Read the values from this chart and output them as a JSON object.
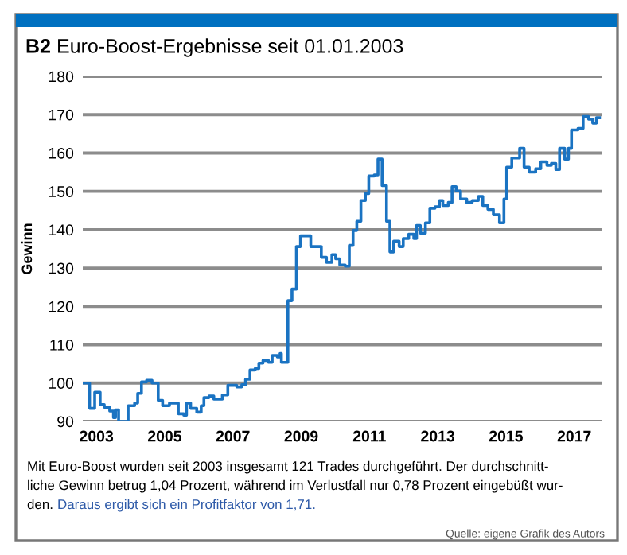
{
  "chart_data": {
    "type": "step",
    "title": "B2 Euro-Boost-Ergebnisse seit 01.01.2003",
    "ylabel": "Gewinn",
    "x": [
      2002.61,
      2002.8,
      2002.95,
      2003.11,
      2003.23,
      2003.39,
      2003.5,
      2003.56,
      2003.65,
      2003.81,
      2003.93,
      2004.12,
      2004.21,
      2004.32,
      2004.47,
      2004.63,
      2004.81,
      2004.94,
      2005.14,
      2005.33,
      2005.4,
      2005.56,
      2005.64,
      2005.76,
      2005.94,
      2006.07,
      2006.15,
      2006.3,
      2006.44,
      2006.69,
      2006.85,
      2007.11,
      2007.26,
      2007.37,
      2007.5,
      2007.65,
      2007.76,
      2007.88,
      2008.04,
      2008.15,
      2008.3,
      2008.38,
      2008.42,
      2008.61,
      2008.73,
      2008.86,
      2008.98,
      2009.28,
      2009.59,
      2009.74,
      2009.9,
      2010.01,
      2010.13,
      2010.29,
      2010.41,
      2010.52,
      2010.63,
      2010.75,
      2010.88,
      2010.98,
      2011.14,
      2011.25,
      2011.37,
      2011.5,
      2011.6,
      2011.71,
      2011.87,
      2011.99,
      2012.15,
      2012.3,
      2012.38,
      2012.49,
      2012.64,
      2012.77,
      2012.92,
      2013.05,
      2013.15,
      2013.31,
      2013.42,
      2013.54,
      2013.67,
      2013.85,
      2014.01,
      2014.19,
      2014.32,
      2014.47,
      2014.63,
      2014.81,
      2014.94,
      2015.02,
      2015.17,
      2015.4,
      2015.53,
      2015.68,
      2015.87,
      2016.02,
      2016.2,
      2016.33,
      2016.46,
      2016.57,
      2016.72,
      2016.83,
      2016.92,
      2017.11,
      2017.26,
      2017.42,
      2017.54,
      2017.65,
      2017.74
    ],
    "series": [
      {
        "color": "#1a73c2",
        "values": [
          100,
          93.4,
          97.6,
          94.4,
          93.7,
          92.7,
          91,
          93,
          90,
          90,
          94.1,
          94.8,
          97.3,
          100.3,
          100.7,
          100,
          95.5,
          94.1,
          94.8,
          94.8,
          92,
          91.6,
          94.8,
          93.4,
          92.4,
          94.1,
          96.2,
          96.6,
          95.8,
          96.9,
          99.4,
          99,
          99.6,
          101,
          103.4,
          103.8,
          105.2,
          105.9,
          105.4,
          107.2,
          106.8,
          107.7,
          105.4,
          121.5,
          124.5,
          135.6,
          138.4,
          135.6,
          132.8,
          131.5,
          133.5,
          132.4,
          130.8,
          130.5,
          135.9,
          139.8,
          142.2,
          147.6,
          149.4,
          154,
          154.3,
          158.4,
          151.5,
          142.2,
          134.2,
          137,
          135.6,
          137.7,
          138.8,
          137.7,
          141.1,
          139.1,
          141.8,
          145.6,
          146,
          147.6,
          146.3,
          147.1,
          151.2,
          150.1,
          148,
          147.1,
          147.6,
          148.7,
          146.3,
          145.3,
          143.9,
          141.8,
          148,
          156.3,
          158.7,
          161.2,
          156.3,
          155,
          155.9,
          157.7,
          156.8,
          157.3,
          155.7,
          161.2,
          158.4,
          161.2,
          166,
          166.4,
          169.5,
          168.8,
          167.8,
          169.2,
          169.2
        ]
      }
    ],
    "xlim": [
      2002.6,
      2017.8
    ],
    "xticks": [
      2003,
      2005,
      2007,
      2009,
      2011,
      2013,
      2015,
      2017
    ],
    "ylim": [
      90,
      180
    ],
    "yticks": [
      90,
      100,
      110,
      120,
      130,
      140,
      150,
      160,
      170,
      180
    ],
    "grid": "y",
    "legend": false,
    "annotations": [
      "Mit Euro-Boost wurden seit 2003 insgesamt 121 Trades durchgeführt. Der durchschnitt-\nliche Gewinn betrug 1,04 Prozent, während im Verlustfall nur 0,78 Prozent eingebüßt wur-\nden.",
      "Daraus ergibt sich ein Profitfaktor von 1,71.",
      "Quelle: eigene Grafik des Autors"
    ]
  }
}
